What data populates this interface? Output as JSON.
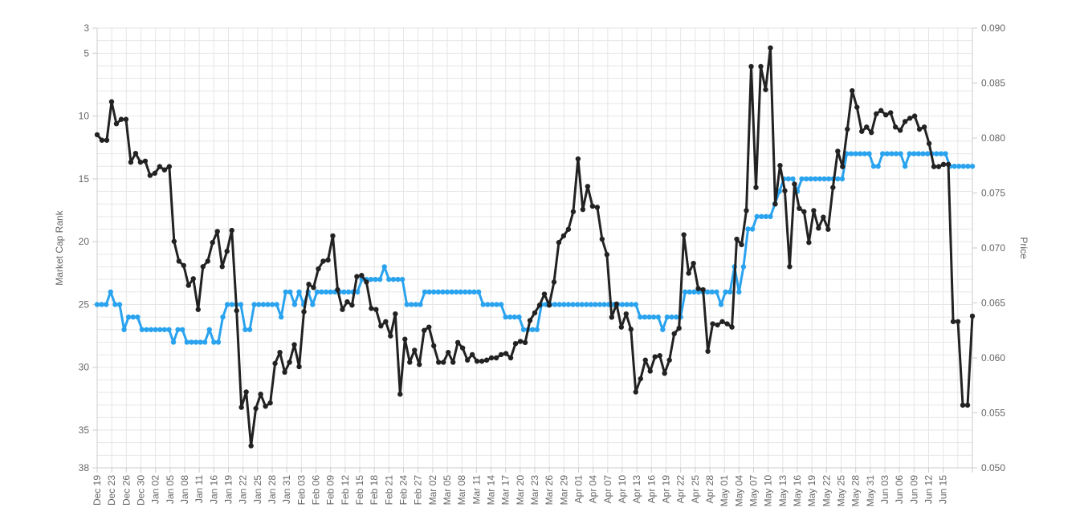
{
  "chart_data": {
    "type": "line",
    "title": "",
    "x_tick_labels": [
      "Dec 19",
      "Dec 23",
      "Dec 26",
      "Dec 30",
      "Jan 02",
      "Jan 05",
      "Jan 08",
      "Jan 11",
      "Jan 16",
      "Jan 19",
      "Jan 22",
      "Jan 25",
      "Jan 28",
      "Jan 31",
      "Feb 03",
      "Feb 06",
      "Feb 09",
      "Feb 12",
      "Feb 15",
      "Feb 18",
      "Feb 21",
      "Feb 24",
      "Feb 27",
      "Mar 02",
      "Mar 05",
      "Mar 08",
      "Mar 11",
      "Mar 14",
      "Mar 17",
      "Mar 20",
      "Mar 23",
      "Mar 26",
      "Mar 29",
      "Apr 01",
      "Apr 04",
      "Apr 07",
      "Apr 10",
      "Apr 13",
      "Apr 16",
      "Apr 19",
      "Apr 22",
      "Apr 25",
      "Apr 28",
      "May 01",
      "May 04",
      "May 07",
      "May 10",
      "May 13",
      "May 16",
      "May 19",
      "May 22",
      "May 25",
      "May 28",
      "May 31",
      "Jun 03",
      "Jun 06",
      "Jun 09",
      "Jun 12",
      "Jun 15"
    ],
    "y_left": {
      "label": "Market Cap Rank",
      "reversed": true,
      "range": [
        3,
        38
      ],
      "ticks": [
        3,
        5,
        10,
        15,
        20,
        25,
        30,
        35,
        38
      ]
    },
    "y_right": {
      "label": "Price",
      "range": [
        0.05,
        0.09
      ],
      "ticks": [
        "0.050",
        "0.055",
        "0.060",
        "0.065",
        "0.070",
        "0.075",
        "0.080",
        "0.085",
        "0.090"
      ]
    },
    "grid": true,
    "legend": "none",
    "colors": {
      "price": "#222222",
      "rank": "#2aa3ef",
      "grid": "#e6e6e6",
      "axis": "#cccccc"
    },
    "series": [
      {
        "axis": "price",
        "color": "#222222",
        "values": [
          0.0803,
          0.0798,
          0.0798,
          0.0833,
          0.0813,
          0.0817,
          0.0817,
          0.0778,
          0.0786,
          0.0778,
          0.0779,
          0.0766,
          0.0768,
          0.0774,
          0.0771,
          0.0774,
          0.0706,
          0.0688,
          0.0684,
          0.0666,
          0.0672,
          0.0644,
          0.0683,
          0.0688,
          0.0705,
          0.0715,
          0.0683,
          0.0697,
          0.0716,
          0.0643,
          0.0555,
          0.0569,
          0.052,
          0.0554,
          0.0567,
          0.0556,
          0.0559,
          0.0595,
          0.0605,
          0.0587,
          0.0596,
          0.0612,
          0.0592,
          0.0642,
          0.0667,
          0.0664,
          0.0681,
          0.0688,
          0.0689,
          0.0711,
          0.0662,
          0.0644,
          0.0651,
          0.0648,
          0.0674,
          0.0675,
          0.0669,
          0.0645,
          0.0644,
          0.0629,
          0.0633,
          0.062,
          0.064,
          0.0567,
          0.0617,
          0.0596,
          0.0607,
          0.0594,
          0.0625,
          0.0628,
          0.0611,
          0.0596,
          0.0596,
          0.0605,
          0.0596,
          0.0614,
          0.0609,
          0.0598,
          0.0603,
          0.0597,
          0.0597,
          0.0598,
          0.06,
          0.06,
          0.0603,
          0.0604,
          0.06,
          0.0613,
          0.0615,
          0.0614,
          0.0634,
          0.0641,
          0.0648,
          0.0658,
          0.0648,
          0.0669,
          0.0705,
          0.0711,
          0.0717,
          0.0733,
          0.0781,
          0.0735,
          0.0756,
          0.0738,
          0.0737,
          0.0708,
          0.0694,
          0.0637,
          0.0649,
          0.0628,
          0.064,
          0.0626,
          0.0569,
          0.0581,
          0.0598,
          0.0588,
          0.0601,
          0.0602,
          0.0586,
          0.0598,
          0.0622,
          0.0627,
          0.0712,
          0.0677,
          0.0686,
          0.0663,
          0.0662,
          0.0606,
          0.0631,
          0.063,
          0.0633,
          0.0631,
          0.0628,
          0.0708,
          0.0703,
          0.0734,
          0.0865,
          0.0755,
          0.0865,
          0.0844,
          0.0882,
          0.074,
          0.0775,
          0.0752,
          0.0683,
          0.0758,
          0.0736,
          0.0733,
          0.0705,
          0.0734,
          0.0718,
          0.0728,
          0.0717,
          0.0755,
          0.0788,
          0.0774,
          0.0808,
          0.0843,
          0.0828,
          0.0806,
          0.081,
          0.0805,
          0.0822,
          0.0825,
          0.0821,
          0.0823,
          0.081,
          0.0807,
          0.0815,
          0.0818,
          0.082,
          0.0808,
          0.081,
          0.0795,
          0.0774,
          0.0774,
          0.0776,
          0.0776,
          0.0633,
          0.0633,
          0.0557,
          0.0557,
          0.0638
        ]
      },
      {
        "axis": "rank",
        "color": "#2aa3ef",
        "values": [
          25,
          25,
          25,
          24,
          25,
          25,
          27,
          26,
          26,
          26,
          27,
          27,
          27,
          27,
          27,
          27,
          27,
          28,
          27,
          27,
          28,
          28,
          28,
          28,
          28,
          27,
          28,
          28,
          26,
          25,
          25,
          25,
          25,
          27,
          27,
          25,
          25,
          25,
          25,
          25,
          25,
          26,
          24,
          24,
          25,
          24,
          25,
          24,
          25,
          24,
          24,
          24,
          24,
          24,
          24,
          24,
          24,
          24,
          24,
          23,
          23,
          23,
          23,
          23,
          22,
          23,
          23,
          23,
          23,
          25,
          25,
          25,
          25,
          24,
          24,
          24,
          24,
          24,
          24,
          24,
          24,
          24,
          24,
          24,
          24,
          24,
          25,
          25,
          25,
          25,
          25,
          26,
          26,
          26,
          26,
          27,
          27,
          27,
          27,
          25,
          25,
          25,
          25,
          25,
          25,
          25,
          25,
          25,
          25,
          25,
          25,
          25,
          25,
          25,
          25,
          25,
          25,
          25,
          25,
          25,
          25,
          26,
          26,
          26,
          26,
          26,
          27,
          26,
          26,
          26,
          26,
          24,
          24,
          24,
          24,
          24,
          24,
          24,
          24,
          25,
          24,
          24,
          22,
          24,
          22,
          19,
          19,
          18,
          18,
          18,
          18,
          17,
          16,
          15,
          15,
          15,
          16,
          15,
          15,
          15,
          15,
          15,
          15,
          15,
          15,
          15,
          15,
          13,
          13,
          13,
          13,
          13,
          13,
          14,
          14,
          13,
          13,
          13,
          13,
          13,
          14,
          13,
          13,
          13,
          13,
          13,
          13,
          13,
          13,
          13,
          14,
          14,
          14,
          14,
          14,
          14
        ]
      }
    ]
  }
}
